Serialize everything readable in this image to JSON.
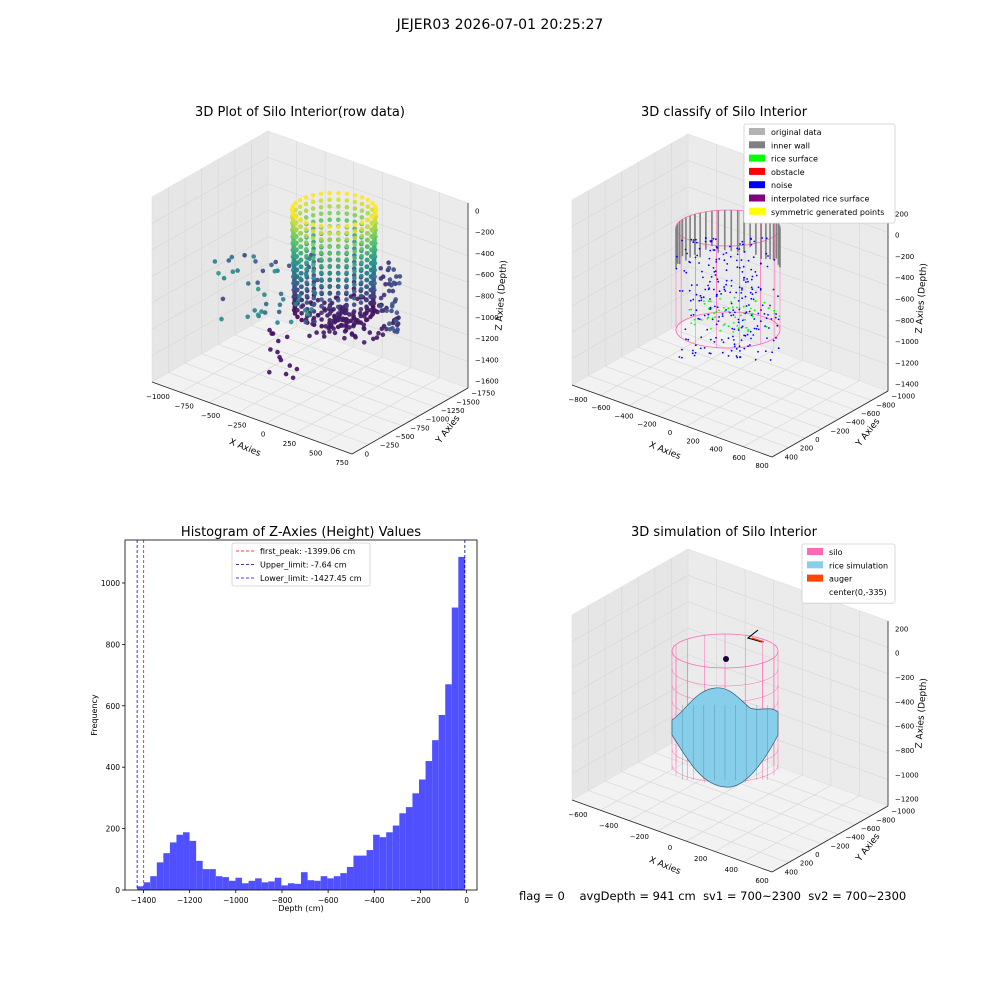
{
  "window": {
    "suptitle": "JEJER03 2026-07-01 20:25:27"
  },
  "status_line": {
    "flag": "flag = 0",
    "avg_depth": "avgDepth = 941 cm",
    "sv1": "sv1 = 700~2300",
    "sv2": "sv2 = 700~2300"
  },
  "colors": {
    "hist_bar": "#5050ff",
    "first_peak": "#ff0000",
    "upper_limit": "#000080",
    "lower_limit": "#0000ff",
    "original": "#b3b3b3",
    "inner_wall": "#808080",
    "rice_surface": "#00ff00",
    "obstacle": "#ff0000",
    "noise": "#0000ff",
    "interpolated": "#800080",
    "symmetric": "#ffff00",
    "silo": "#ff69b4",
    "rice_sim": "#87ceeb",
    "auger": "#ff4500"
  },
  "chart_data": [
    {
      "type": "scatter",
      "projection": "3d",
      "title": "3D Plot of Silo Interior(row data)",
      "xlabel": "X Axies",
      "ylabel": "Y Axies",
      "zlabel": "Z Axies (Depth)",
      "xticks": [
        "−1000",
        "−750",
        "−500",
        "−250",
        "0",
        "250",
        "500",
        "750"
      ],
      "yticks": [
        "0",
        "−250",
        "−500",
        "−750",
        "−1000",
        "−1250",
        "−1500",
        "−1750"
      ],
      "zticks": [
        "0",
        "−200",
        "−400",
        "−600",
        "−800",
        "−1000",
        "−1200",
        "−1400",
        "−1600"
      ],
      "colormap": "viridis by depth"
    },
    {
      "type": "scatter",
      "projection": "3d",
      "title": "3D classify of Silo Interior",
      "xlabel": "X Axies",
      "ylabel": "Y Axies",
      "zlabel": "Z Axies (Depth)",
      "xticks": [
        "−800",
        "−600",
        "−400",
        "−200",
        "0",
        "200",
        "400",
        "600",
        "800"
      ],
      "yticks": [
        "400",
        "200",
        "0",
        "−200",
        "−400",
        "−600",
        "−800",
        "−1000"
      ],
      "zticks": [
        "200",
        "0",
        "−200",
        "−400",
        "−600",
        "−800",
        "−1000",
        "−1200",
        "−1400"
      ],
      "legend_position": "top-right",
      "legend": [
        {
          "label": "original data",
          "color": "#b3b3b3"
        },
        {
          "label": "inner wall",
          "color": "#808080"
        },
        {
          "label": "rice surface",
          "color": "#00ff00"
        },
        {
          "label": "obstacle",
          "color": "#ff0000"
        },
        {
          "label": "noise",
          "color": "#0000ff"
        },
        {
          "label": "interpolated rice surface",
          "color": "#800080"
        },
        {
          "label": "symmetric generated points",
          "color": "#ffff00"
        }
      ]
    },
    {
      "type": "bar",
      "title": "Histogram of Z-Axies (Height) Values",
      "xlabel": "Depth (cm)",
      "ylabel": "Frequency",
      "xlim": [
        -1480,
        45
      ],
      "ylim": [
        0,
        1140
      ],
      "xticks": [
        -1400,
        -1200,
        -1000,
        -800,
        -600,
        -400,
        -200,
        0
      ],
      "xtick_labels": [
        "−1400",
        "−1200",
        "−1000",
        "−800",
        "−600",
        "−400",
        "−200",
        "0"
      ],
      "yticks": [
        0,
        200,
        400,
        600,
        800,
        1000
      ],
      "bins": {
        "start": -1427.45,
        "width": 28.4
      },
      "values": [
        12,
        25,
        45,
        90,
        120,
        155,
        180,
        188,
        160,
        95,
        68,
        68,
        45,
        42,
        30,
        40,
        22,
        30,
        38,
        25,
        28,
        40,
        15,
        22,
        20,
        58,
        32,
        30,
        45,
        38,
        45,
        55,
        75,
        112,
        112,
        130,
        180,
        172,
        188,
        210,
        250,
        270,
        315,
        360,
        420,
        488,
        570,
        670,
        920,
        1085
      ],
      "vlines": [
        {
          "label": "first_peak: -1399.06 cm",
          "x": -1399.06,
          "color": "#ff0000"
        },
        {
          "label": "Upper_limit: -7.64 cm",
          "x": -7.64,
          "color": "#000080"
        },
        {
          "label": "Lower_limit: -1427.45 cm",
          "x": -1427.45,
          "color": "#0000ff"
        }
      ],
      "legend_position": "upper center",
      "grid": false
    },
    {
      "type": "surface",
      "projection": "3d",
      "title": "3D simulation of Silo Interior",
      "xlabel": "X Axies",
      "ylabel": "Y Axies",
      "zlabel": "Z Axies (Depth)",
      "xticks": [
        "−600",
        "−400",
        "−200",
        "0",
        "200",
        "400",
        "600"
      ],
      "yticks": [
        "400",
        "200",
        "0",
        "−200",
        "−400",
        "−600",
        "−800",
        "−1000"
      ],
      "zticks": [
        "200",
        "0",
        "−200",
        "−400",
        "−600",
        "−800",
        "−1000",
        "−1200"
      ],
      "legend_position": "top-right",
      "legend": [
        {
          "label": "silo",
          "color": "#ff69b4"
        },
        {
          "label": "rice simulation",
          "color": "#87ceeb"
        },
        {
          "label": "auger",
          "color": "#ff4500"
        },
        {
          "label": "center(0,-335)",
          "color": ""
        }
      ]
    }
  ]
}
